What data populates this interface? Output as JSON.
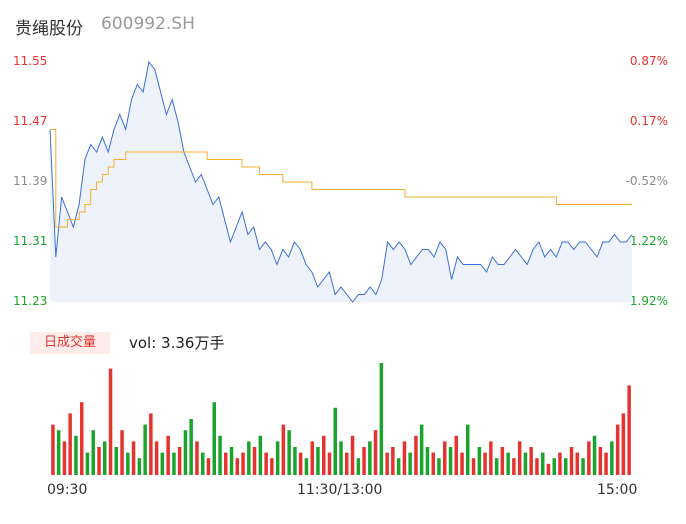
{
  "header": {
    "name": "贵绳股份",
    "code": "600992.SH"
  },
  "price_axis": {
    "left_labels": [
      "11.55",
      "11.47",
      "11.39",
      "11.31",
      "11.23"
    ],
    "right_labels": [
      "0.87%",
      "0.17%",
      "-0.52%",
      "-1.22%",
      "-1.92%"
    ]
  },
  "volume": {
    "badge": "日成交量",
    "text": "vol: 3.36万手"
  },
  "time_labels": [
    "09:30",
    "11:30/13:00",
    "15:00"
  ],
  "colors": {
    "price_line": "#3a6fd8",
    "avg_line": "#f0b02e",
    "up": "#e5342f",
    "down": "#1aa32d",
    "area": "#eef2fb"
  },
  "chart_data": [
    {
      "type": "line",
      "ylim": [
        11.23,
        11.55
      ],
      "y_ticks": [
        11.55,
        11.47,
        11.39,
        11.31,
        11.23
      ],
      "y2_ticks": [
        "0.87%",
        "0.17%",
        "-0.52%",
        "-1.22%",
        "-1.92%"
      ],
      "x_ticks": [
        "09:30",
        "11:30/13:00",
        "15:00"
      ],
      "series": [
        {
          "values": [
            11.46,
            11.29,
            11.37,
            11.35,
            11.33,
            11.36,
            11.42,
            11.44,
            11.43,
            11.45,
            11.43,
            11.46,
            11.48,
            11.46,
            11.5,
            11.52,
            11.51,
            11.55,
            11.54,
            11.51,
            11.48,
            11.5,
            11.47,
            11.43,
            11.41,
            11.39,
            11.4,
            11.38,
            11.36,
            11.37,
            11.34,
            11.31,
            11.33,
            11.35,
            11.32,
            11.33,
            11.3,
            11.31,
            11.3,
            11.28,
            11.3,
            11.29,
            11.31,
            11.3,
            11.28,
            11.27,
            11.25,
            11.26,
            11.27,
            11.24,
            11.25,
            11.24,
            11.23,
            11.24,
            11.24,
            11.25,
            11.24,
            11.26,
            11.31,
            11.3,
            11.31,
            11.3,
            11.28,
            11.29,
            11.3,
            11.3,
            11.29,
            11.31,
            11.3,
            11.26,
            11.29,
            11.28,
            11.28,
            11.28,
            11.28,
            11.27,
            11.29,
            11.28,
            11.28,
            11.29,
            11.3,
            11.29,
            11.28,
            11.3,
            11.31,
            11.29,
            11.3,
            11.29,
            11.31,
            11.31,
            11.3,
            11.31,
            11.31,
            11.3,
            11.29,
            11.31,
            11.31,
            11.32,
            11.31,
            11.31,
            11.32
          ]
        },
        {
          "values": [
            11.46,
            11.33,
            11.33,
            11.34,
            11.34,
            11.35,
            11.36,
            11.38,
            11.39,
            11.4,
            11.41,
            11.42,
            11.42,
            11.43,
            11.43,
            11.43,
            11.43,
            11.43,
            11.43,
            11.43,
            11.43,
            11.43,
            11.43,
            11.43,
            11.43,
            11.43,
            11.43,
            11.42,
            11.42,
            11.42,
            11.42,
            11.42,
            11.42,
            11.41,
            11.41,
            11.41,
            11.4,
            11.4,
            11.4,
            11.4,
            11.39,
            11.39,
            11.39,
            11.39,
            11.39,
            11.38,
            11.38,
            11.38,
            11.38,
            11.38,
            11.38,
            11.38,
            11.38,
            11.38,
            11.38,
            11.38,
            11.38,
            11.38,
            11.38,
            11.38,
            11.38,
            11.37,
            11.37,
            11.37,
            11.37,
            11.37,
            11.37,
            11.37,
            11.37,
            11.37,
            11.37,
            11.37,
            11.37,
            11.37,
            11.37,
            11.37,
            11.37,
            11.37,
            11.37,
            11.37,
            11.37,
            11.37,
            11.37,
            11.37,
            11.37,
            11.37,
            11.37,
            11.36,
            11.36,
            11.36,
            11.36,
            11.36,
            11.36,
            11.36,
            11.36,
            11.36,
            11.36,
            11.36,
            11.36,
            11.36,
            11.36
          ]
        }
      ]
    },
    {
      "type": "bar",
      "series": [
        {
          "values": [
            45,
            40,
            30,
            55,
            35,
            65,
            20,
            40,
            25,
            30,
            95,
            25,
            40,
            20,
            30,
            15,
            45,
            55,
            30,
            20,
            35,
            20,
            25,
            40,
            50,
            30,
            20,
            15,
            65,
            35,
            20,
            25,
            15,
            20,
            30,
            25,
            35,
            20,
            15,
            30,
            45,
            40,
            25,
            20,
            15,
            30,
            25,
            35,
            20,
            60,
            30,
            20,
            35,
            15,
            25,
            30,
            40,
            100,
            20,
            25,
            15,
            30,
            20,
            35,
            45,
            25,
            20,
            15,
            30,
            25,
            35,
            20,
            45,
            15,
            25,
            20,
            30,
            15,
            25,
            20,
            15,
            30,
            20,
            25,
            15,
            20,
            10,
            15,
            20,
            15,
            25,
            20,
            15,
            30,
            35,
            25,
            20,
            30,
            45,
            55,
            80
          ],
          "up": [
            1,
            0,
            1,
            1,
            0,
            1,
            0,
            0,
            1,
            0,
            1,
            0,
            1,
            0,
            1,
            0,
            0,
            1,
            1,
            0,
            1,
            0,
            1,
            0,
            0,
            1,
            0,
            1,
            0,
            0,
            1,
            0,
            1,
            1,
            0,
            1,
            0,
            1,
            1,
            0,
            1,
            0,
            0,
            1,
            0,
            1,
            0,
            1,
            1,
            0,
            0,
            1,
            1,
            0,
            1,
            0,
            1,
            0,
            1,
            1,
            0,
            1,
            0,
            1,
            0,
            0,
            1,
            0,
            1,
            0,
            1,
            1,
            0,
            1,
            0,
            1,
            1,
            0,
            1,
            0,
            1,
            1,
            0,
            1,
            1,
            0,
            1,
            0,
            1,
            0,
            1,
            1,
            0,
            1,
            0,
            1,
            1,
            0,
            1,
            1,
            1
          ]
        }
      ]
    }
  ]
}
